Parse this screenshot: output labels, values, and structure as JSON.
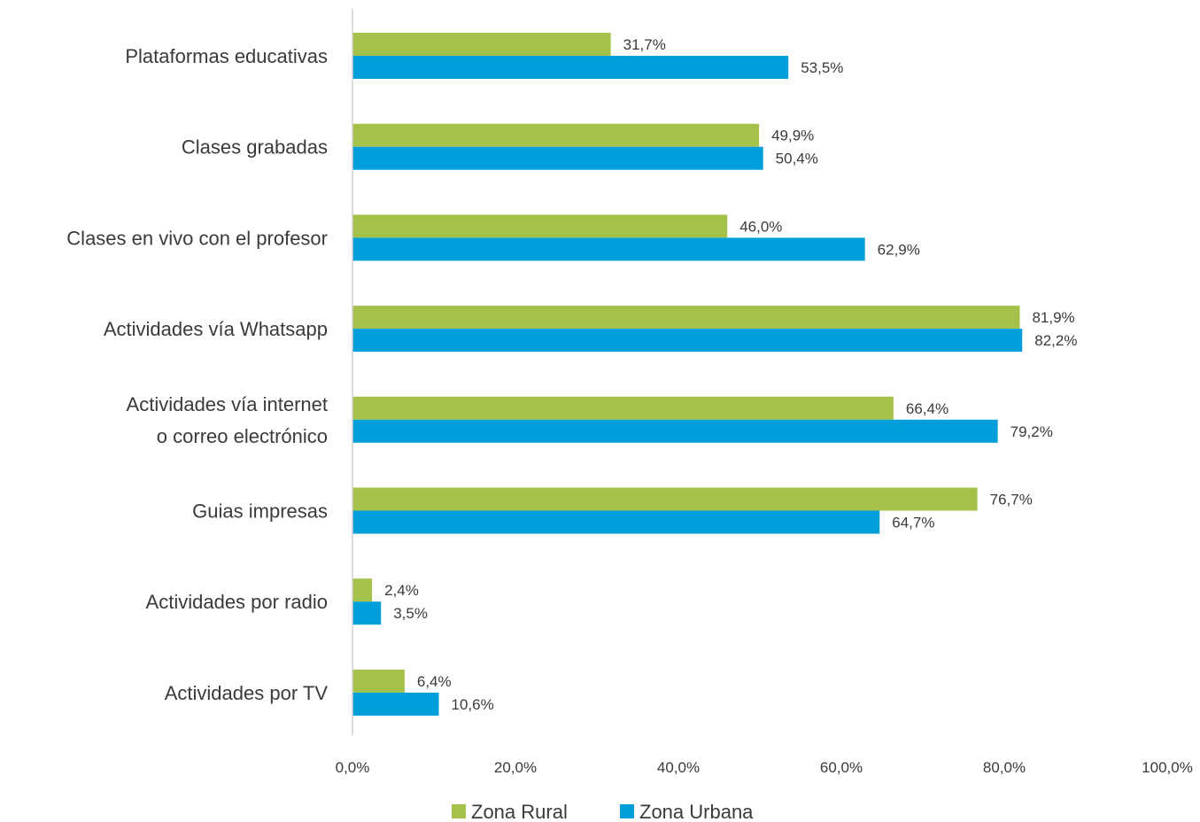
{
  "chart_data": {
    "type": "bar",
    "orientation": "horizontal",
    "title": "",
    "xlabel": "",
    "ylabel": "",
    "xlim": [
      0,
      100
    ],
    "x_ticks": [
      "0,0%",
      "20,0%",
      "40,0%",
      "60,0%",
      "80,0%",
      "100,0%"
    ],
    "grid": false,
    "legend_position": "bottom",
    "categories": [
      [
        "Plataformas educativas"
      ],
      [
        "Clases grabadas"
      ],
      [
        "Clases en vivo con el profesor"
      ],
      [
        "Actividades vía Whatsapp"
      ],
      [
        "Actividades vía internet",
        "o correo electrónico"
      ],
      [
        "Guias impresas"
      ],
      [
        "Actividades por radio"
      ],
      [
        "Actividades por TV"
      ]
    ],
    "series": [
      {
        "name": "Zona Rural",
        "color": "#a4c14a",
        "values": [
          31.7,
          49.9,
          46.0,
          81.9,
          66.4,
          76.7,
          2.4,
          6.4
        ],
        "labels": [
          "31,7%",
          "49,9%",
          "46,0%",
          "81,9%",
          "66,4%",
          "76,7%",
          "2,4%",
          "6,4%"
        ]
      },
      {
        "name": "Zona Urbana",
        "color": "#009fdb",
        "values": [
          53.5,
          50.4,
          62.9,
          82.2,
          79.2,
          64.7,
          3.5,
          10.6
        ],
        "labels": [
          "53,5%",
          "50,4%",
          "62,9%",
          "82,2%",
          "79,2%",
          "64,7%",
          "3,5%",
          "10,6%"
        ]
      }
    ]
  }
}
